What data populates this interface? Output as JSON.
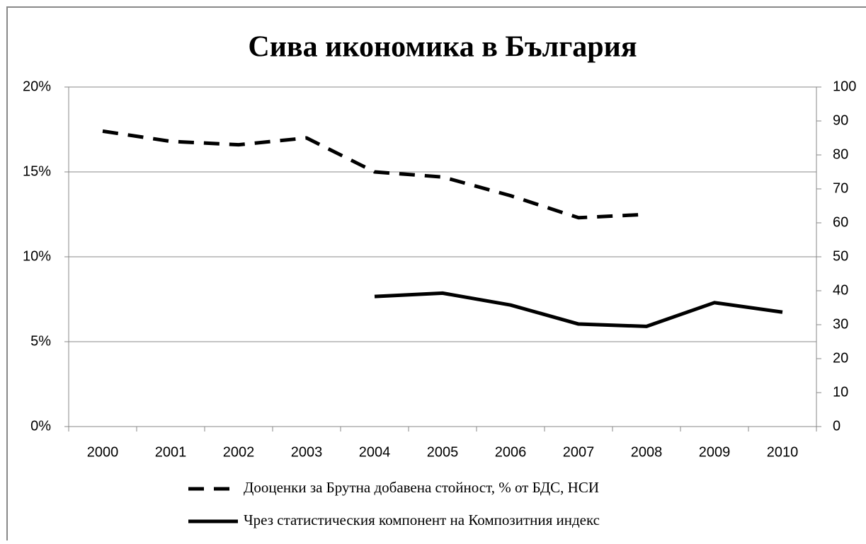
{
  "chart_data": {
    "type": "line",
    "title": "Сива икономика в България",
    "categories": [
      "2000",
      "2001",
      "2002",
      "2003",
      "2004",
      "2005",
      "2006",
      "2007",
      "2008",
      "2009",
      "2010"
    ],
    "series": [
      {
        "name": "Дооценки за Брутна добавена стойност, % от БДС, НСИ",
        "color": "#000000",
        "line_style": "dashed",
        "values": [
          17.4,
          16.8,
          16.6,
          17.0,
          15.0,
          14.7,
          13.6,
          12.3,
          12.5,
          null,
          null
        ]
      },
      {
        "name": "Чрез статистическия компонент на Композитния индекс",
        "color": "#000000",
        "line_style": "solid",
        "axis": "y2",
        "values": [
          null,
          null,
          null,
          null,
          38.3,
          39.3,
          35.8,
          30.2,
          29.5,
          36.5,
          33.7
        ]
      }
    ],
    "ylim": [
      0,
      20
    ],
    "yticks": [
      {
        "value": 0,
        "label": "0%"
      },
      {
        "value": 5,
        "label": "5%"
      },
      {
        "value": 10,
        "label": "10%"
      },
      {
        "value": 15,
        "label": "15%"
      },
      {
        "value": 20,
        "label": "20%"
      }
    ],
    "y2lim": [
      0,
      100
    ],
    "y2ticks": [
      0,
      10,
      20,
      30,
      40,
      50,
      60,
      70,
      80,
      90,
      100
    ],
    "grid": true
  }
}
